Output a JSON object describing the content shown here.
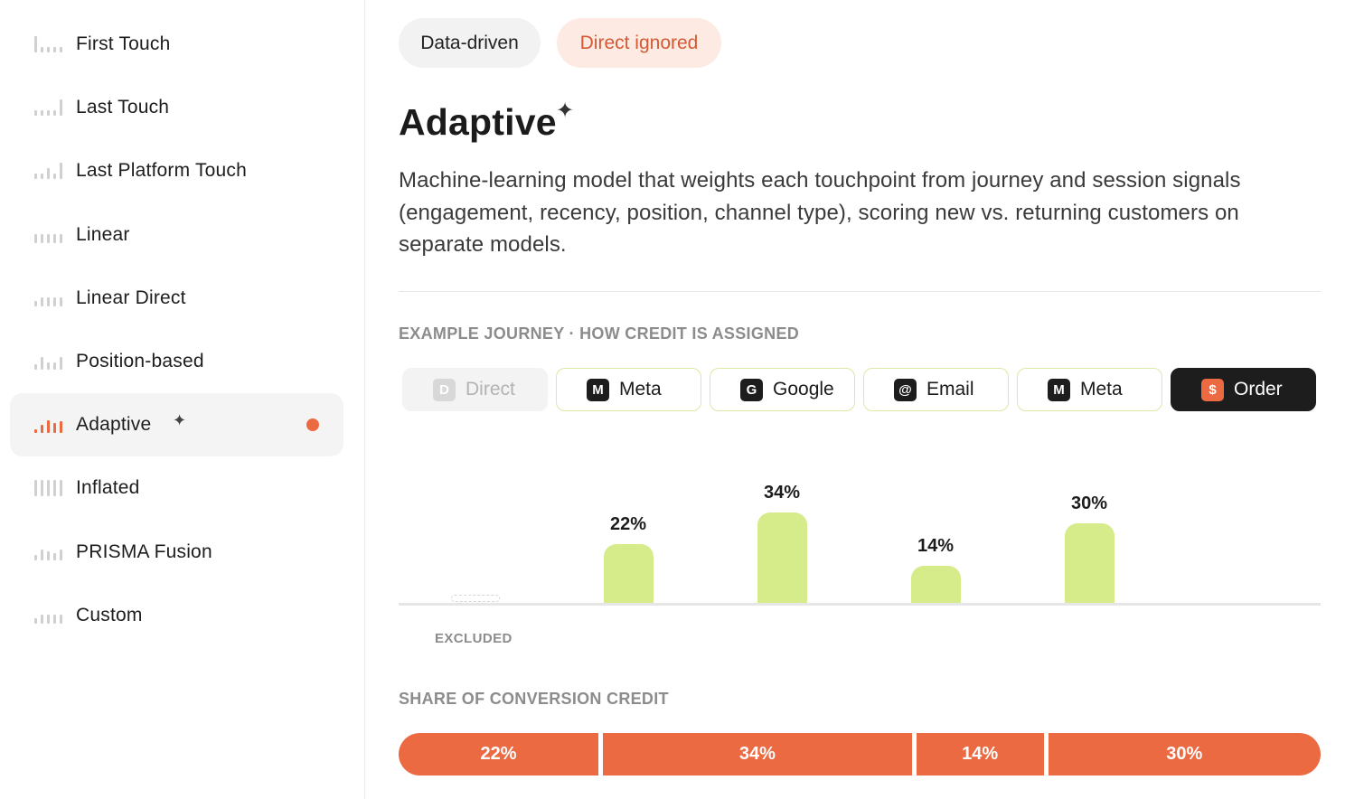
{
  "sidebar": {
    "items": [
      {
        "label": "First Touch",
        "icon": "first-touch-bars-icon",
        "bars": [
          18,
          6,
          6,
          6,
          6
        ]
      },
      {
        "label": "Last Touch",
        "icon": "last-touch-bars-icon",
        "bars": [
          6,
          6,
          6,
          6,
          18
        ]
      },
      {
        "label": "Last Platform Touch",
        "icon": "last-platform-touch-bars-icon",
        "bars": [
          6,
          6,
          12,
          6,
          18
        ]
      },
      {
        "label": "Linear",
        "icon": "linear-bars-icon",
        "bars": [
          10,
          10,
          10,
          10,
          10
        ]
      },
      {
        "label": "Linear Direct",
        "icon": "linear-direct-bars-icon",
        "bars": [
          6,
          10,
          10,
          10,
          10
        ]
      },
      {
        "label": "Position-based",
        "icon": "position-based-bars-icon",
        "bars": [
          6,
          14,
          8,
          8,
          14
        ]
      },
      {
        "label": "Adaptive",
        "icon": "adaptive-bars-icon",
        "bars": [
          4,
          9,
          14,
          11,
          13
        ],
        "active": true,
        "spark": "✦"
      },
      {
        "label": "Inflated",
        "icon": "inflated-bars-icon",
        "bars": [
          18,
          18,
          18,
          18,
          18
        ]
      },
      {
        "label": "PRISMA Fusion",
        "icon": "prisma-fusion-bars-icon",
        "bars": [
          6,
          12,
          10,
          8,
          12
        ]
      },
      {
        "label": "Custom",
        "icon": "custom-bars-icon",
        "bars": [
          6,
          10,
          10,
          10,
          10
        ]
      }
    ],
    "accent": "#ec6a42",
    "bar_color": "#d0d0d0"
  },
  "tags": {
    "primary": "Data-driven",
    "secondary": "Direct ignored"
  },
  "model": {
    "title": "Adaptive",
    "spark": "✦",
    "description": "Machine-learning model that weights each touchpoint from journey and session signals (engagement, recency, position, channel type), scoring new vs. returning customers on separate models."
  },
  "journey": {
    "label": "EXAMPLE JOURNEY · HOW CREDIT IS ASSIGNED",
    "steps": [
      {
        "letter": "D",
        "label": "Direct",
        "state": "excluded"
      },
      {
        "letter": "M",
        "label": "Meta",
        "state": "normal"
      },
      {
        "letter": "G",
        "label": "Google",
        "state": "normal"
      },
      {
        "letter": "@",
        "label": "Email",
        "state": "normal"
      },
      {
        "letter": "M",
        "label": "Meta",
        "state": "normal"
      },
      {
        "letter": "$",
        "label": "Order",
        "state": "order"
      }
    ],
    "excluded_label": "EXCLUDED"
  },
  "chart_data": {
    "type": "bar",
    "categories": [
      "Direct",
      "Meta",
      "Google",
      "Email",
      "Meta"
    ],
    "values": [
      0,
      22,
      34,
      14,
      30
    ],
    "value_labels": [
      "",
      "22%",
      "34%",
      "14%",
      "30%"
    ],
    "ylim": [
      0,
      34
    ],
    "bar_color": "#d6eb8a"
  },
  "share": {
    "label": "SHARE OF CONVERSION CREDIT",
    "segments": [
      {
        "label": "22%",
        "value": 22
      },
      {
        "label": "34%",
        "value": 34
      },
      {
        "label": "14%",
        "value": 14
      },
      {
        "label": "30%",
        "value": 30
      }
    ],
    "color": "#ec6a42"
  }
}
